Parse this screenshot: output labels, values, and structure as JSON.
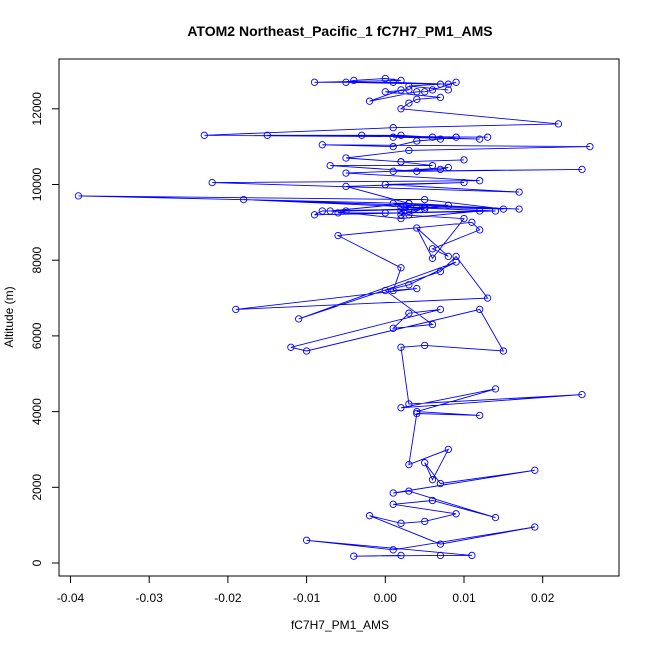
{
  "chart_data": {
    "type": "line",
    "title": "ATOM2 Northeast_Pacific_1 fC7H7_PM1_AMS",
    "xlabel": "fC7H7_PM1_AMS",
    "ylabel": "Altitude (m)",
    "xlim": [
      -0.04,
      0.027
    ],
    "ylim": [
      0,
      13000
    ],
    "xticks": [
      -0.04,
      -0.03,
      -0.02,
      -0.01,
      0.0,
      0.01,
      0.02
    ],
    "xtick_labels": [
      "-0.04",
      "-0.03",
      "-0.02",
      "-0.01",
      "0.00",
      "0.01",
      "0.02"
    ],
    "yticks": [
      0,
      2000,
      4000,
      6000,
      8000,
      10000,
      12000
    ],
    "ytick_labels": [
      "0",
      "2000",
      "4000",
      "6000",
      "8000",
      "10000",
      "12000"
    ],
    "grid": false,
    "line_color": "#0000ff",
    "marker": "open-circle",
    "series": [
      {
        "x": [
          0.002,
          -0.004,
          0.007,
          0.011,
          -0.01,
          0.001,
          0.019,
          0.007,
          -0.002,
          0.002,
          0.005,
          0.009,
          0.001,
          0.006,
          0.014,
          0.003,
          0.001,
          0.019,
          0.007,
          0.005,
          0.006,
          0.008,
          0.003,
          0.004,
          0.012,
          0.004,
          0.014,
          0.002,
          0.025,
          0.003,
          0.002,
          0.005,
          0.015,
          0.012,
          -0.01,
          -0.012,
          0.007,
          0.003,
          0.001,
          0.006,
          0.0,
          0.003,
          0.009,
          -0.011,
          0.007,
          0.009,
          0.013,
          -0.019,
          0.004,
          0.001,
          0.002,
          -0.006,
          0.011,
          0.012,
          0.006,
          0.008,
          0.004,
          0.006,
          0.01,
          0.002,
          0.005,
          0.003,
          0.002,
          0.008,
          0.003,
          -0.007,
          0.002,
          0.012,
          0.0,
          -0.006,
          -0.005,
          0.005,
          0.002,
          0.014,
          -0.009,
          -0.008,
          0.003,
          0.001,
          0.017,
          -0.018,
          0.004,
          0.015,
          0.005,
          -0.039,
          0.003,
          -0.005,
          0.01,
          0.0,
          0.017,
          -0.022,
          0.012,
          -0.005,
          0.007,
          0.008,
          0.001,
          0.025,
          0.004,
          -0.007,
          0.006,
          0.002,
          0.01,
          0.002,
          -0.005,
          0.003,
          0.026,
          -0.008,
          0.001,
          0.004,
          0.007,
          0.009,
          -0.003,
          0.012,
          0.001,
          0.006,
          0.002,
          -0.015,
          0.013,
          -0.023,
          0.001,
          0.022,
          0.002,
          0.003,
          0.004,
          0.007,
          0.0,
          0.003,
          0.002,
          -0.002,
          0.004,
          0.005,
          0.006,
          0.009,
          0.008,
          0.001,
          -0.009,
          0.002,
          0.0,
          -0.004,
          -0.005,
          0.007,
          0.003,
          0.008
        ],
        "y": [
          200,
          180,
          200,
          200,
          600,
          350,
          950,
          500,
          1250,
          1050,
          1100,
          1300,
          1550,
          1650,
          1200,
          1900,
          1850,
          2450,
          2100,
          2650,
          2200,
          3000,
          2600,
          3950,
          3900,
          4000,
          4600,
          4100,
          4450,
          4200,
          5700,
          5750,
          5600,
          6700,
          5600,
          5700,
          6700,
          6600,
          6200,
          6300,
          7200,
          7350,
          7950,
          6450,
          7700,
          8100,
          7000,
          6700,
          7250,
          7200,
          7800,
          8650,
          9000,
          8800,
          8300,
          8100,
          8850,
          8050,
          9100,
          9200,
          9400,
          9200,
          9300,
          9450,
          9500,
          9300,
          9100,
          9300,
          9250,
          9250,
          9300,
          9350,
          9400,
          9300,
          9200,
          9300,
          9350,
          9500,
          9350,
          9600,
          9400,
          9350,
          9600,
          9700,
          9500,
          9950,
          10050,
          10000,
          9800,
          10050,
          10100,
          10300,
          10400,
          10450,
          10350,
          10400,
          10350,
          10500,
          10500,
          10600,
          10650,
          10600,
          10700,
          10900,
          11000,
          11050,
          11000,
          11150,
          11200,
          11250,
          11300,
          11200,
          11250,
          11250,
          11300,
          11300,
          11250,
          11300,
          11500,
          11600,
          12000,
          12150,
          12250,
          12300,
          12450,
          12500,
          12500,
          12200,
          12450,
          12450,
          12500,
          12700,
          12650,
          12700,
          12700,
          12750,
          12800,
          12750,
          12700,
          12650,
          12600,
          12500
        ]
      }
    ]
  }
}
